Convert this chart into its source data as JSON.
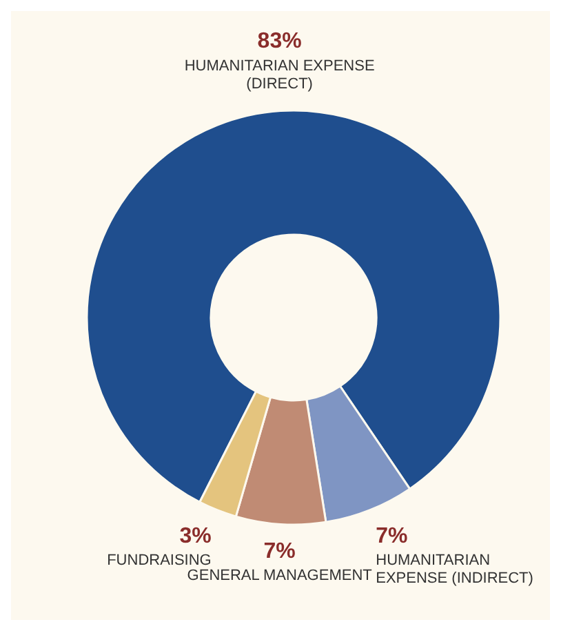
{
  "chart_data": {
    "type": "donut",
    "categories": [
      "HUMANITARIAN EXPENSE (DIRECT)",
      "HUMANITARIAN EXPENSE (INDIRECT)",
      "GENERAL MANAGEMENT",
      "FUNDRAISING"
    ],
    "values": [
      83,
      7,
      7,
      3
    ],
    "value_labels": [
      "83%",
      "7%",
      "7%",
      "3%"
    ],
    "colors": [
      "#1f4e8e",
      "#7f95c3",
      "#c08b74",
      "#e4c47e"
    ],
    "legend": false
  }
}
